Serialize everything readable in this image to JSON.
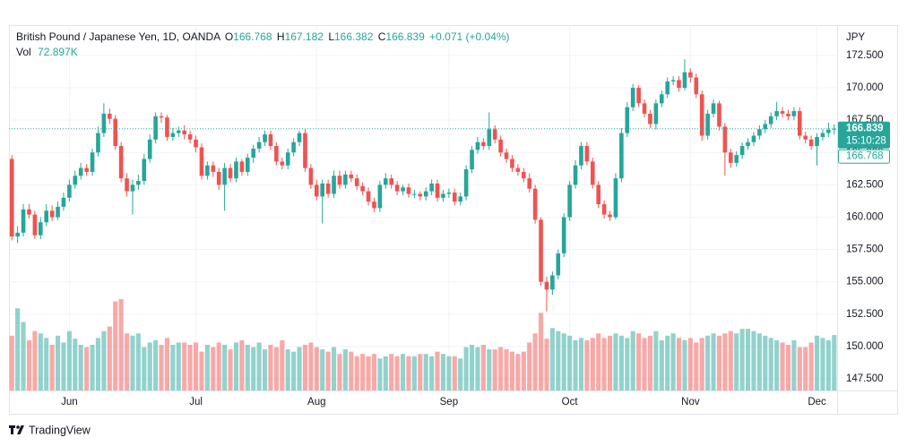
{
  "header": {
    "symbol": "British Pound / Japanese Yen, 1D, OANDA",
    "o": "O",
    "h": "H",
    "l": "L",
    "c": "C",
    "change": "+0.071 (+0.04%)",
    "vol": "Vol",
    "vol_value": "72.897K"
  },
  "footer": {
    "brand": "TradingView"
  },
  "chart_data": {
    "type": "candlestick",
    "currency": "JPY",
    "countdown": "15:10:28",
    "up_color": "#26a69a",
    "down_color": "#ef5350",
    "grid": true,
    "ylim": [
      146.67,
      174.85
    ],
    "yticks": [
      {
        "value": 147.5,
        "label": "147.500"
      },
      {
        "value": 150,
        "label": "150.000"
      },
      {
        "value": 152.5,
        "label": "152.500"
      },
      {
        "value": 155,
        "label": "155.000"
      },
      {
        "value": 157.5,
        "label": "157.500"
      },
      {
        "value": 160,
        "label": "160.000"
      },
      {
        "value": 162.5,
        "label": "162.500"
      },
      {
        "value": 165,
        "label": "165.000"
      },
      {
        "value": 167.5,
        "label": "167.500"
      },
      {
        "value": 170,
        "label": "170.000"
      },
      {
        "value": 172.5,
        "label": "172.500"
      }
    ],
    "categories": [
      null,
      null,
      null,
      null,
      null,
      null,
      null,
      null,
      null,
      null,
      "Jun",
      null,
      null,
      null,
      null,
      null,
      null,
      null,
      null,
      null,
      null,
      null,
      null,
      null,
      null,
      null,
      null,
      null,
      null,
      null,
      null,
      null,
      "Jul",
      null,
      null,
      null,
      null,
      null,
      null,
      null,
      null,
      null,
      null,
      null,
      null,
      null,
      null,
      null,
      null,
      null,
      null,
      null,
      null,
      "Aug",
      null,
      null,
      null,
      null,
      null,
      null,
      null,
      null,
      null,
      null,
      null,
      null,
      null,
      null,
      null,
      null,
      null,
      null,
      null,
      null,
      null,
      null,
      "Sep",
      null,
      null,
      null,
      null,
      null,
      null,
      null,
      null,
      null,
      null,
      null,
      null,
      null,
      null,
      null,
      null,
      null,
      null,
      null,
      null,
      "Oct",
      null,
      null,
      null,
      null,
      null,
      null,
      null,
      null,
      null,
      null,
      null,
      null,
      null,
      null,
      null,
      null,
      null,
      null,
      null,
      null,
      "Nov",
      null,
      null,
      null,
      null,
      null,
      null,
      null,
      null,
      null,
      null,
      null,
      null,
      null,
      null,
      null,
      null,
      null,
      null,
      null,
      null,
      null,
      "Dec",
      null,
      null,
      null
    ],
    "open": [
      164.5,
      158.5,
      158.8,
      160.6,
      160.2,
      158.6,
      159.6,
      160.5,
      160.0,
      160.8,
      161.5,
      162.5,
      163.2,
      163.8,
      163.5,
      165.0,
      166.5,
      168.0,
      167.6,
      165.5,
      163.0,
      162.0,
      162.5,
      162.8,
      164.5,
      166.0,
      167.8,
      167.7,
      166.2,
      166.5,
      166.7,
      166.4,
      166.0,
      165.4,
      163.2,
      164.0,
      163.5,
      162.5,
      163.8,
      163.0,
      164.3,
      163.5,
      164.6,
      165.3,
      165.8,
      166.4,
      165.5,
      164.3,
      164.0,
      165.0,
      165.8,
      166.5,
      163.8,
      162.5,
      161.6,
      162.6,
      161.8,
      163.2,
      162.5,
      163.3,
      163.0,
      162.4,
      162.0,
      161.2,
      160.7,
      162.5,
      163.0,
      162.5,
      162.0,
      162.3,
      161.8,
      161.8,
      161.6,
      162.0,
      162.6,
      161.5,
      161.8,
      161.9,
      161.2,
      161.6,
      163.7,
      165.2,
      165.8,
      165.5,
      166.8,
      166.0,
      165.0,
      164.5,
      163.8,
      163.5,
      163.0,
      162.2,
      159.8,
      155.0,
      154.4,
      155.5,
      157.2,
      160.0,
      162.5,
      164.0,
      165.5,
      164.3,
      162.5,
      161.0,
      160.2,
      160.0,
      163.0,
      166.5,
      168.5,
      170.0,
      168.8,
      168.0,
      167.2,
      168.8,
      169.5,
      170.5,
      170.6,
      170.0,
      171.2,
      170.8,
      169.5,
      166.3,
      168.0,
      168.8,
      167.0,
      165.0,
      164.2,
      164.8,
      165.5,
      165.8,
      166.3,
      166.8,
      167.2,
      167.8,
      168.2,
      168.0,
      167.8,
      168.2,
      166.3,
      166.0,
      165.5,
      166.2,
      166.5,
      166.768
    ],
    "high": [
      164.8,
      159.3,
      161.0,
      161.0,
      160.5,
      160.0,
      161.0,
      160.9,
      161.2,
      161.9,
      162.9,
      163.6,
      164.2,
      164.1,
      165.3,
      167.0,
      168.8,
      168.4,
      167.9,
      165.8,
      163.4,
      162.9,
      163.3,
      164.9,
      166.4,
      168.1,
      168.1,
      167.9,
      166.9,
      167.0,
      167.1,
      166.7,
      166.3,
      165.7,
      164.3,
      164.3,
      163.8,
      164.2,
      164.1,
      164.6,
      164.5,
      164.9,
      165.6,
      166.2,
      166.7,
      166.7,
      165.8,
      164.6,
      165.3,
      166.1,
      166.7,
      166.8,
      164.1,
      162.9,
      162.9,
      162.9,
      163.6,
      163.6,
      163.6,
      163.6,
      163.3,
      162.7,
      162.3,
      161.5,
      162.8,
      163.4,
      163.3,
      162.8,
      162.5,
      162.6,
      162.1,
      162.0,
      162.3,
      162.9,
      162.9,
      162.1,
      162.2,
      162.2,
      161.9,
      164.0,
      165.5,
      166.2,
      166.1,
      168.1,
      167.1,
      166.3,
      165.3,
      164.8,
      164.1,
      163.8,
      163.4,
      162.5,
      160.0,
      155.4,
      155.8,
      157.5,
      160.3,
      162.8,
      164.4,
      165.8,
      165.8,
      164.6,
      162.8,
      161.3,
      160.5,
      163.4,
      166.9,
      168.9,
      170.3,
      170.2,
      169.1,
      168.3,
      169.1,
      169.8,
      170.8,
      170.9,
      170.9,
      172.2,
      171.5,
      171.1,
      169.8,
      168.3,
      169.1,
      169.0,
      167.3,
      165.3,
      165.1,
      165.8,
      166.1,
      166.6,
      167.1,
      167.5,
      168.1,
      168.9,
      168.5,
      168.3,
      168.5,
      168.5,
      166.6,
      166.3,
      166.5,
      166.8,
      167.3,
      167.182
    ],
    "low": [
      158.2,
      158.0,
      158.5,
      159.9,
      158.3,
      158.3,
      159.3,
      159.7,
      159.8,
      160.5,
      161.2,
      162.2,
      162.9,
      163.2,
      163.2,
      164.7,
      166.2,
      167.2,
      165.2,
      162.7,
      161.6,
      160.2,
      162.1,
      162.5,
      164.2,
      165.7,
      167.3,
      165.9,
      165.9,
      166.2,
      166.0,
      165.7,
      165.0,
      162.9,
      162.9,
      163.1,
      162.1,
      160.5,
      162.7,
      162.7,
      163.2,
      163.2,
      164.2,
      165.0,
      165.5,
      165.2,
      164.0,
      163.7,
      163.7,
      164.7,
      165.5,
      163.5,
      162.2,
      161.3,
      159.5,
      161.5,
      161.5,
      162.2,
      162.2,
      162.7,
      162.1,
      161.7,
      160.9,
      160.4,
      160.4,
      162.2,
      162.2,
      161.7,
      161.7,
      161.5,
      161.5,
      161.3,
      161.3,
      161.7,
      161.2,
      161.2,
      161.5,
      160.9,
      160.9,
      161.3,
      163.4,
      164.9,
      165.2,
      165.2,
      165.7,
      164.7,
      164.2,
      163.5,
      163.2,
      162.7,
      161.9,
      159.5,
      154.7,
      152.7,
      154.0,
      155.2,
      156.9,
      159.7,
      162.2,
      163.7,
      164.0,
      162.2,
      160.7,
      159.9,
      159.7,
      159.8,
      162.7,
      166.2,
      168.2,
      168.5,
      167.7,
      166.9,
      166.8,
      168.5,
      169.2,
      170.2,
      169.7,
      169.8,
      170.4,
      169.2,
      165.9,
      166.0,
      167.7,
      166.7,
      163.2,
      163.8,
      163.9,
      164.5,
      165.2,
      165.5,
      166.0,
      166.5,
      166.9,
      167.5,
      167.7,
      167.5,
      167.5,
      166.0,
      165.7,
      165.2,
      164.0,
      165.9,
      166.2,
      166.382
    ],
    "close": [
      158.5,
      158.8,
      160.6,
      160.2,
      158.6,
      159.6,
      160.5,
      160.0,
      160.8,
      161.5,
      162.5,
      163.2,
      163.8,
      163.5,
      165.0,
      166.5,
      168.0,
      167.6,
      165.5,
      163.0,
      162.0,
      162.5,
      162.8,
      164.5,
      166.0,
      167.8,
      167.7,
      166.2,
      166.5,
      166.7,
      166.4,
      166.0,
      165.4,
      163.2,
      164.0,
      163.5,
      162.5,
      163.8,
      163.0,
      164.3,
      163.5,
      164.6,
      165.3,
      165.8,
      166.4,
      165.5,
      164.3,
      164.0,
      165.0,
      165.8,
      166.5,
      163.8,
      162.5,
      161.6,
      162.6,
      161.8,
      163.2,
      162.5,
      163.3,
      163.0,
      162.4,
      162.0,
      161.2,
      160.7,
      162.5,
      163.0,
      162.5,
      162.0,
      162.3,
      161.8,
      161.8,
      161.6,
      162.0,
      162.6,
      161.5,
      161.8,
      161.9,
      161.2,
      161.6,
      163.7,
      165.2,
      165.8,
      165.5,
      166.8,
      166.0,
      165.0,
      164.5,
      163.8,
      163.5,
      163.0,
      162.2,
      159.8,
      155.0,
      154.4,
      155.5,
      157.2,
      160.0,
      162.5,
      164.0,
      165.5,
      164.3,
      162.5,
      161.0,
      160.2,
      160.0,
      163.0,
      166.5,
      168.5,
      170.0,
      168.8,
      168.0,
      167.2,
      168.8,
      169.5,
      170.5,
      170.6,
      170.0,
      171.2,
      170.8,
      169.5,
      166.3,
      168.0,
      168.8,
      167.0,
      165.0,
      164.2,
      164.8,
      165.5,
      165.8,
      166.3,
      166.8,
      167.2,
      167.8,
      168.2,
      168.0,
      167.8,
      168.2,
      166.3,
      166.0,
      165.5,
      166.2,
      166.5,
      166.768,
      166.839
    ],
    "volume": [
      72,
      108,
      90,
      66,
      78,
      75,
      69,
      60,
      72,
      63,
      78,
      68,
      60,
      57,
      60,
      69,
      78,
      84,
      117,
      120,
      75,
      72,
      75,
      57,
      63,
      66,
      60,
      69,
      60,
      63,
      63,
      60,
      63,
      51,
      60,
      57,
      63,
      60,
      54,
      63,
      66,
      60,
      57,
      63,
      54,
      60,
      57,
      66,
      54,
      51,
      57,
      60,
      63,
      57,
      54,
      51,
      57,
      48,
      54,
      51,
      45,
      48,
      45,
      48,
      42,
      45,
      48,
      45,
      48,
      45,
      45,
      48,
      48,
      45,
      51,
      48,
      45,
      45,
      42,
      57,
      60,
      57,
      60,
      54,
      54,
      57,
      54,
      51,
      48,
      51,
      63,
      75,
      102,
      68,
      82,
      78,
      75,
      72,
      66,
      69,
      66,
      69,
      75,
      69,
      72,
      75,
      72,
      69,
      78,
      75,
      69,
      72,
      78,
      66,
      72,
      75,
      69,
      66,
      69,
      63,
      69,
      72,
      75,
      72,
      75,
      78,
      75,
      81,
      81,
      78,
      75,
      72,
      69,
      66,
      63,
      60,
      66,
      57,
      57,
      63,
      72,
      69,
      66,
      72.897
    ]
  }
}
